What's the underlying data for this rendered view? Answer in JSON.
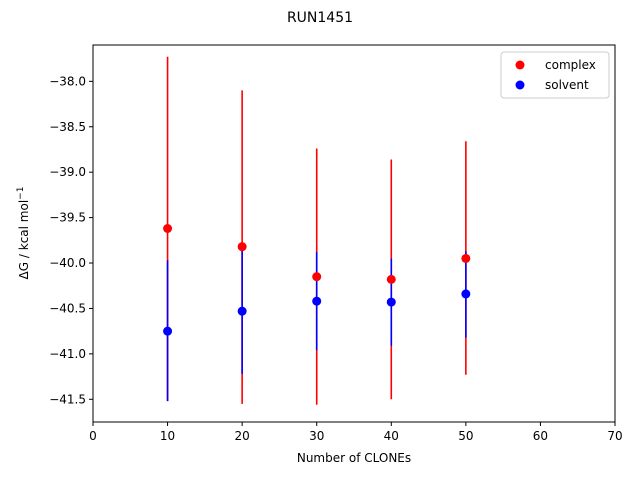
{
  "chart_data": {
    "type": "scatter",
    "title": "RUN1451",
    "xlabel": "Number of CLONEs",
    "ylabel_base": "ΔG / kcal mol",
    "ylabel_sup": "−1",
    "xlim": [
      0,
      70
    ],
    "ylim": [
      -41.75,
      -37.6
    ],
    "xticks": [
      0,
      10,
      20,
      30,
      40,
      50,
      60,
      70
    ],
    "xtick_labels": [
      "0",
      "10",
      "20",
      "30",
      "40",
      "50",
      "60",
      "70"
    ],
    "yticks": [
      -41.5,
      -41.0,
      -40.5,
      -40.0,
      -39.5,
      -39.0,
      -38.5,
      -38.0
    ],
    "ytick_labels": [
      "−41.5",
      "−41.0",
      "−40.5",
      "−40.0",
      "−39.5",
      "−39.0",
      "−38.5",
      "−38.0"
    ],
    "grid": false,
    "legend_position": "top-right",
    "series": [
      {
        "name": "complex",
        "color": "#ff0000",
        "points": [
          {
            "x": 10,
            "y": -39.62,
            "err_low": -41.52,
            "err_high": -37.73
          },
          {
            "x": 20,
            "y": -39.82,
            "err_low": -41.55,
            "err_high": -38.1
          },
          {
            "x": 30,
            "y": -40.15,
            "err_low": -41.56,
            "err_high": -38.74
          },
          {
            "x": 40,
            "y": -40.18,
            "err_low": -41.5,
            "err_high": -38.86
          },
          {
            "x": 50,
            "y": -39.95,
            "err_low": -41.23,
            "err_high": -38.66
          }
        ]
      },
      {
        "name": "solvent",
        "color": "#0000ff",
        "points": [
          {
            "x": 10,
            "y": -40.75,
            "err_low": -41.52,
            "err_high": -39.97
          },
          {
            "x": 20,
            "y": -40.53,
            "err_low": -41.22,
            "err_high": -39.83
          },
          {
            "x": 30,
            "y": -40.42,
            "err_low": -40.96,
            "err_high": -39.88
          },
          {
            "x": 40,
            "y": -40.43,
            "err_low": -40.91,
            "err_high": -39.95
          },
          {
            "x": 50,
            "y": -40.34,
            "err_low": -40.82,
            "err_high": -39.87
          }
        ]
      }
    ]
  }
}
